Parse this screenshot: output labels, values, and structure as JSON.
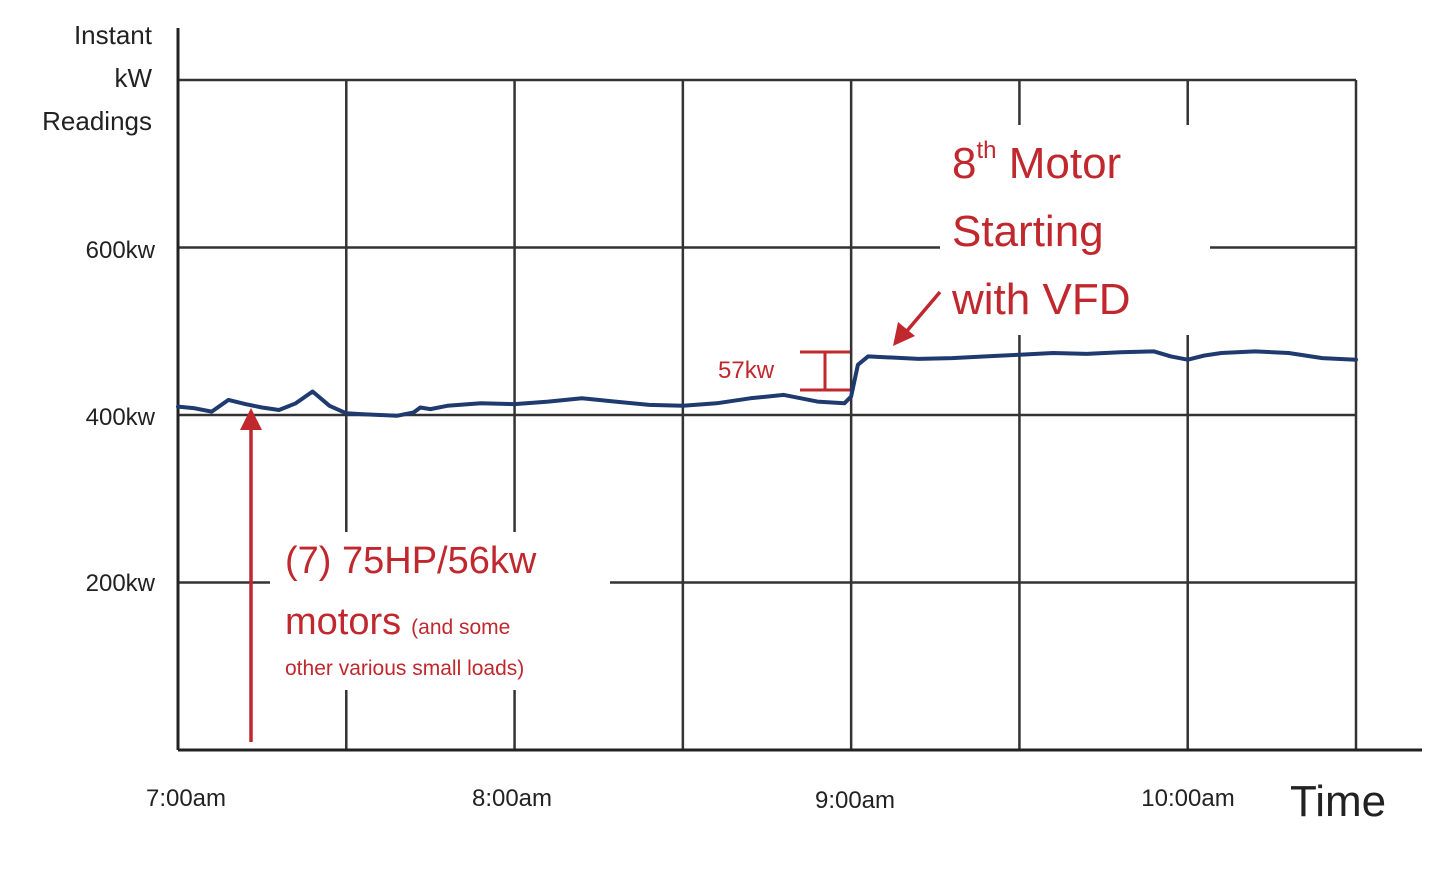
{
  "chart_data": {
    "type": "line",
    "ylabel_lines": [
      "Instant",
      "kW",
      "Readings"
    ],
    "xlabel": "Time",
    "x_ticks": [
      "7:00am",
      "8:00am",
      "9:00am",
      "10:00am"
    ],
    "y_ticks": [
      "200kw",
      "400kw",
      "600kw"
    ],
    "xlim_hours": [
      7.0,
      10.5
    ],
    "ylim": [
      0,
      800
    ],
    "grid": true,
    "series": [
      {
        "color": "#1f3a6e",
        "x": [
          7.0,
          7.05,
          7.1,
          7.15,
          7.2,
          7.25,
          7.3,
          7.35,
          7.4,
          7.45,
          7.5,
          7.55,
          7.6,
          7.65,
          7.7,
          7.72,
          7.75,
          7.8,
          7.9,
          8.0,
          8.1,
          8.2,
          8.3,
          8.4,
          8.5,
          8.6,
          8.7,
          8.8,
          8.9,
          8.98,
          9.0,
          9.02,
          9.05,
          9.1,
          9.2,
          9.3,
          9.4,
          9.5,
          9.6,
          9.7,
          9.8,
          9.9,
          9.95,
          10.0,
          10.05,
          10.1,
          10.2,
          10.3,
          10.4,
          10.5
        ],
        "y": [
          410,
          408,
          404,
          418,
          413,
          409,
          406,
          414,
          428,
          411,
          402,
          401,
          400,
          399,
          403,
          409,
          407,
          411,
          414,
          413,
          416,
          420,
          416,
          412,
          411,
          414,
          420,
          424,
          416,
          414,
          422,
          460,
          470,
          469,
          467,
          468,
          470,
          472,
          474,
          473,
          475,
          476,
          470,
          466,
          471,
          474,
          476,
          474,
          468,
          466
        ]
      }
    ],
    "annotations": {
      "left_note_main_1": "(7) 75HP/56kw",
      "left_note_main_2": "motors",
      "left_note_small_1": "(and some",
      "left_note_small_2": "other various small loads)",
      "right_note_1": "8",
      "right_note_sup": "th",
      "right_note_1b": " Motor",
      "right_note_2": "Starting",
      "right_note_3": "with VFD",
      "step_label": "57kw"
    }
  }
}
